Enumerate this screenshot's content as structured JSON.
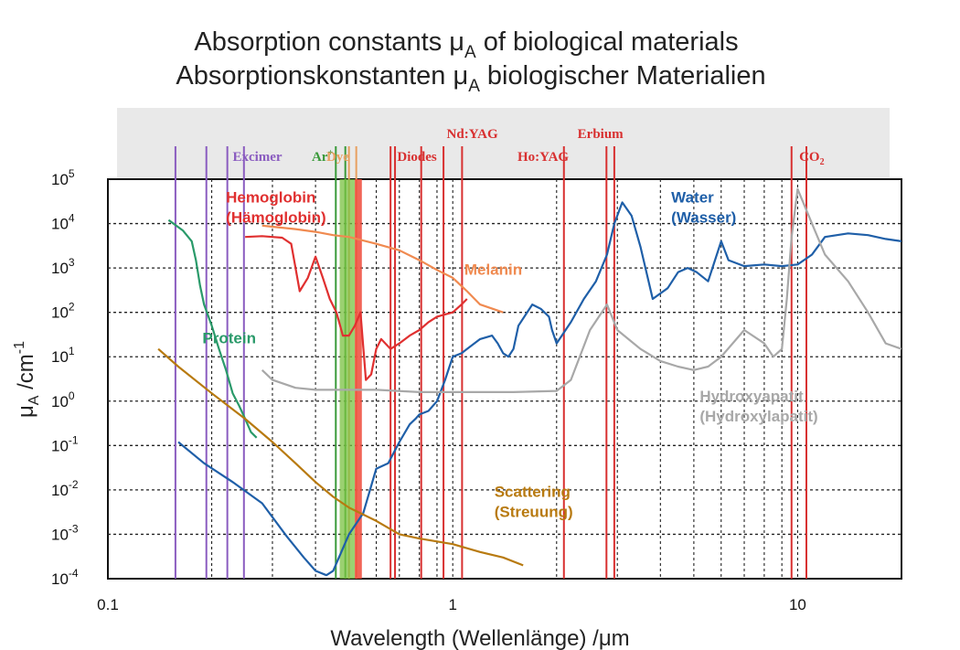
{
  "chart_data": {
    "type": "line",
    "title": "Absorption constants μ",
    "title_sub": "A",
    "title_rest": " of biological materials",
    "title2": "Absorptionskonstanten μ",
    "title2_sub": "A",
    "title2_rest": " biologischer Materialien",
    "xlabel": "Wavelength (Wellenlänge) /μm",
    "ylabel": "μ",
    "ylabel_sub": "A",
    "ylabel_rest": " /cm",
    "ylabel_sup": "-1",
    "x_scale": "log",
    "y_scale": "log",
    "xlim": [
      0.1,
      20
    ],
    "ylim": [
      0.0001,
      100000
    ],
    "grid": true,
    "x_ticks": [
      {
        "value": 0.1,
        "label": "0.1"
      },
      {
        "value": 1,
        "label": "1"
      },
      {
        "value": 10,
        "label": "10"
      }
    ],
    "y_ticks": [
      {
        "value": 100000,
        "base": "10",
        "exp": "5"
      },
      {
        "value": 10000,
        "base": "10",
        "exp": "4"
      },
      {
        "value": 1000,
        "base": "10",
        "exp": "3"
      },
      {
        "value": 100,
        "base": "10",
        "exp": "2"
      },
      {
        "value": 10,
        "base": "10",
        "exp": "1"
      },
      {
        "value": 1,
        "base": "10",
        "exp": "0"
      },
      {
        "value": 0.1,
        "base": "10",
        "exp": "-1"
      },
      {
        "value": 0.01,
        "base": "10",
        "exp": "-2"
      },
      {
        "value": 0.001,
        "base": "10",
        "exp": "-3"
      },
      {
        "value": 0.0001,
        "base": "10",
        "exp": "-4"
      }
    ],
    "lasers": [
      {
        "name": "Excimer",
        "color": "#8a5cc0",
        "label_x": 0.23,
        "label_row": 2,
        "lines": [
          0.157,
          0.193,
          0.222,
          0.248
        ]
      },
      {
        "name": "Ar",
        "sup": "+",
        "color": "#3a9a3a",
        "label_x": 0.39,
        "label_row": 2,
        "lines": [
          0.458,
          0.488
        ]
      },
      {
        "name": "Dye",
        "color": "#e8a060",
        "label_x": 0.43,
        "label_row": 2,
        "lines": [
          0.5,
          0.525
        ]
      },
      {
        "name": "Diodes",
        "color": "#d83030",
        "label_x": 0.69,
        "label_row": 2,
        "lines": [
          0.66,
          0.68,
          0.81,
          0.94
        ]
      },
      {
        "name": "Nd:YAG",
        "color": "#d83030",
        "label_x": 0.96,
        "label_row": 1,
        "lines": [
          1.064
        ]
      },
      {
        "name": "Ho:YAG",
        "color": "#d83030",
        "label_x": 1.54,
        "label_row": 2,
        "lines": [
          2.1
        ]
      },
      {
        "name": "Erbium",
        "color": "#d83030",
        "label_x": 2.3,
        "label_row": 1,
        "lines": [
          2.94,
          2.79
        ]
      },
      {
        "name": "CO",
        "sub": "2",
        "color": "#d83030",
        "label_x": 10.1,
        "label_row": 2,
        "lines": [
          9.6,
          10.6
        ]
      }
    ],
    "series": [
      {
        "name": "Water",
        "name2": "(Wasser)",
        "color": "#1f5fa8",
        "label_x": 4.3,
        "label_y": 30000,
        "x": [
          0.16,
          0.19,
          0.23,
          0.28,
          0.33,
          0.37,
          0.4,
          0.43,
          0.45,
          0.5,
          0.55,
          0.6,
          0.65,
          0.7,
          0.75,
          0.78,
          0.8,
          0.85,
          0.9,
          0.95,
          1.0,
          1.06,
          1.1,
          1.2,
          1.3,
          1.35,
          1.4,
          1.45,
          1.5,
          1.55,
          1.7,
          1.8,
          1.9,
          1.94,
          2.0,
          2.2,
          2.4,
          2.6,
          2.8,
          2.94,
          3.1,
          3.3,
          3.5,
          3.8,
          4.2,
          4.5,
          4.8,
          5.1,
          5.5,
          6.0,
          6.3,
          7,
          8,
          9,
          10,
          11,
          12,
          14,
          16,
          18,
          20
        ],
        "y": [
          0.12,
          0.04,
          0.015,
          0.005,
          0.0009,
          0.0003,
          0.00015,
          0.00012,
          0.00015,
          0.001,
          0.003,
          0.03,
          0.04,
          0.12,
          0.3,
          0.4,
          0.5,
          0.6,
          1.0,
          3,
          10,
          12,
          15,
          25,
          30,
          20,
          12,
          10,
          15,
          50,
          150,
          120,
          80,
          40,
          20,
          60,
          200,
          500,
          2000,
          10000,
          30000,
          15000,
          3000,
          200,
          350,
          800,
          1000,
          800,
          500,
          4000,
          1500,
          1100,
          1200,
          1100,
          1200,
          2000,
          5000,
          6000,
          5500,
          4500,
          4000
        ]
      },
      {
        "name": "Hemoglobin",
        "name2": "(Hämoglobin)",
        "color": "#e03030",
        "label_x": 0.22,
        "label_y": 30000,
        "x": [
          0.25,
          0.28,
          0.3,
          0.32,
          0.34,
          0.36,
          0.38,
          0.4,
          0.42,
          0.44,
          0.46,
          0.48,
          0.5,
          0.52,
          0.54,
          0.56,
          0.58,
          0.6,
          0.62,
          0.66,
          0.7,
          0.75,
          0.8,
          0.85,
          0.9,
          0.95,
          1.0,
          1.06,
          1.1
        ],
        "y": [
          5000,
          5200,
          5000,
          4800,
          3500,
          300,
          600,
          1800,
          600,
          200,
          100,
          30,
          30,
          50,
          100,
          3,
          4,
          15,
          25,
          15,
          20,
          30,
          40,
          60,
          80,
          90,
          100,
          150,
          200
        ]
      },
      {
        "name": "Melanin",
        "color": "#f08a50",
        "label_x": 1.08,
        "label_y": 700,
        "x": [
          0.28,
          0.3,
          0.35,
          0.4,
          0.45,
          0.5,
          0.6,
          0.7,
          0.8,
          0.9,
          1.0,
          1.1,
          1.2,
          1.4
        ],
        "y": [
          9000,
          8500,
          7500,
          6500,
          5500,
          5000,
          3500,
          2500,
          1500,
          900,
          600,
          300,
          150,
          100
        ]
      },
      {
        "name": "Protein",
        "color": "#2a9a6a",
        "label_x": 0.188,
        "label_y": 20,
        "x": [
          0.15,
          0.165,
          0.175,
          0.18,
          0.185,
          0.19,
          0.2,
          0.21,
          0.22,
          0.23,
          0.24,
          0.25,
          0.26,
          0.27
        ],
        "y": [
          12000,
          7000,
          4000,
          1500,
          400,
          150,
          50,
          15,
          5,
          1.5,
          0.8,
          0.4,
          0.2,
          0.15
        ]
      },
      {
        "name": "Hydroxyapatit",
        "name2": "(Hydroxylapatit)",
        "color": "#a8a8a8",
        "label_x": 5.2,
        "label_y": 1,
        "x": [
          0.28,
          0.3,
          0.35,
          0.4,
          0.5,
          0.6,
          0.8,
          1.0,
          1.5,
          2.0,
          2.2,
          2.5,
          2.8,
          3.0,
          3.5,
          4.0,
          4.5,
          5.0,
          5.5,
          6.0,
          7.0,
          8.0,
          8.5,
          9.0,
          9.3,
          9.6,
          10.0,
          11.0,
          12.0,
          14.0,
          16.0,
          18.0,
          20.0
        ],
        "y": [
          5,
          3,
          2,
          1.8,
          1.8,
          1.8,
          1.6,
          1.6,
          1.6,
          1.7,
          3,
          40,
          150,
          40,
          15,
          8,
          6,
          5,
          6,
          10,
          40,
          20,
          10,
          15,
          200,
          5000,
          60000,
          10000,
          2000,
          500,
          100,
          20,
          15
        ]
      },
      {
        "name": "Scattering",
        "name2": "(Streuung)",
        "color": "#b87a10",
        "label_x": 1.32,
        "label_y": 0.007,
        "x": [
          0.14,
          0.16,
          0.2,
          0.25,
          0.3,
          0.35,
          0.4,
          0.45,
          0.5,
          0.6,
          0.7,
          0.8,
          1.0,
          1.2,
          1.4,
          1.6
        ],
        "y": [
          15,
          6,
          1.5,
          0.4,
          0.12,
          0.04,
          0.015,
          0.007,
          0.004,
          0.002,
          0.001,
          0.0008,
          0.0006,
          0.0004,
          0.0003,
          0.0002
        ]
      }
    ]
  }
}
